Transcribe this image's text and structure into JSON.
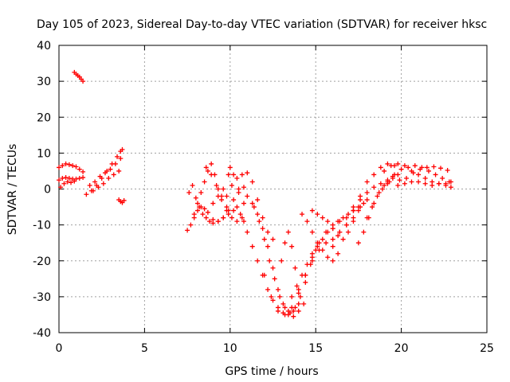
{
  "chart_data": {
    "type": "scatter",
    "title": "Day 105 of 2023, Sidereal Day-to-day VTEC variation (SDTVAR) for receiver hksc",
    "xlabel": "GPS time / hours",
    "ylabel": "SDTVAR / TECUs",
    "xlim": [
      0,
      25
    ],
    "ylim": [
      -40,
      40
    ],
    "xticks": [
      0,
      5,
      10,
      15,
      20,
      25
    ],
    "yticks": [
      -40,
      -30,
      -20,
      -10,
      0,
      10,
      20,
      30,
      40
    ],
    "grid": true,
    "marker": "plus",
    "color": "#ff0000",
    "series": [
      {
        "x": [
          0.0,
          0.2,
          0.4,
          0.6,
          0.8,
          1.0,
          1.2,
          1.4
        ],
        "y": [
          6.0,
          6.5,
          7.0,
          6.8,
          6.5,
          6.2,
          5.5,
          4.8
        ]
      },
      {
        "x": [
          0.0,
          0.2,
          0.4,
          0.6,
          0.8,
          1.0,
          1.2,
          1.4
        ],
        "y": [
          2.5,
          3.0,
          3.2,
          3.0,
          2.8,
          2.8,
          3.0,
          3.2
        ]
      },
      {
        "x": [
          0.1,
          0.3,
          0.5,
          0.7,
          0.9
        ],
        "y": [
          0.5,
          1.5,
          2.0,
          1.8,
          2.2
        ]
      },
      {
        "x": [
          0.9,
          1.0,
          1.1,
          1.2,
          1.3,
          1.4
        ],
        "y": [
          32.5,
          32.0,
          31.6,
          31.2,
          30.6,
          30.0
        ]
      },
      {
        "x": [
          1.6,
          1.9,
          2.2,
          2.5,
          2.8,
          3.1,
          3.4,
          3.6,
          3.7
        ],
        "y": [
          -1.5,
          -0.5,
          1.0,
          3.0,
          5.0,
          7.0,
          9.0,
          10.5,
          11.0
        ]
      },
      {
        "x": [
          1.8,
          2.1,
          2.4,
          2.7,
          3.0,
          3.3,
          3.6
        ],
        "y": [
          1.0,
          2.0,
          3.5,
          4.5,
          5.5,
          7.0,
          8.5
        ]
      },
      {
        "x": [
          2.0,
          2.3,
          2.6,
          2.9,
          3.2,
          3.5
        ],
        "y": [
          -0.5,
          0.5,
          1.5,
          3.0,
          4.0,
          5.0
        ]
      },
      {
        "x": [
          3.5,
          3.6,
          3.7,
          3.8
        ],
        "y": [
          -3.0,
          -3.5,
          -3.8,
          -3.2
        ]
      },
      {
        "x": [
          7.5,
          7.7,
          7.9,
          8.1,
          8.3,
          8.5,
          8.7,
          9.0,
          9.3,
          9.6,
          9.9,
          10.2
        ],
        "y": [
          -11.5,
          -10.0,
          -8.0,
          -6.0,
          -5.0,
          -5.5,
          -6.5,
          -8.5,
          -9.0,
          -8.0,
          -7.0,
          -6.0
        ]
      },
      {
        "x": [
          7.6,
          7.8,
          8.0,
          8.2,
          8.4,
          8.6,
          8.8,
          9.0,
          9.3,
          9.6,
          9.9,
          10.2,
          10.5,
          10.8
        ],
        "y": [
          -1.0,
          1.0,
          -2.5,
          -5.0,
          -7.0,
          -8.0,
          -9.0,
          -9.5,
          -9.0,
          -8.0,
          -6.0,
          -3.0,
          -1.0,
          0.5
        ]
      },
      {
        "x": [
          7.9,
          8.1,
          8.3,
          8.5,
          8.7,
          8.9,
          9.1,
          9.3,
          9.5,
          9.8
        ],
        "y": [
          -7.0,
          -4.0,
          -1.0,
          2.0,
          5.0,
          7.0,
          4.0,
          0.0,
          -3.0,
          -6.0
        ]
      },
      {
        "x": [
          8.6,
          8.9,
          9.2,
          9.5,
          9.8,
          10.1,
          10.4,
          10.7
        ],
        "y": [
          6.0,
          4.0,
          1.0,
          -2.0,
          -5.0,
          -8.0,
          -9.0,
          -8.0
        ]
      },
      {
        "x": [
          9.0,
          9.3,
          9.6,
          9.9,
          10.0,
          10.2,
          10.5,
          10.8
        ],
        "y": [
          -4.0,
          -2.0,
          0.0,
          4.0,
          6.0,
          4.0,
          0.0,
          -4.0
        ]
      },
      {
        "x": [
          9.8,
          10.1,
          10.4,
          10.7,
          11.0,
          11.3,
          11.6,
          11.9,
          12.2,
          12.5
        ],
        "y": [
          -2.0,
          1.0,
          3.0,
          4.0,
          4.5,
          2.0,
          -3.0,
          -8.0,
          -12.0,
          -14.0
        ]
      },
      {
        "x": [
          10.4,
          10.6,
          10.8,
          11.0,
          11.3,
          11.6,
          11.9,
          12.2,
          12.5,
          12.8,
          13.1,
          13.4,
          13.7,
          14.0
        ],
        "y": [
          -5.0,
          -7.0,
          -9.0,
          -12.0,
          -16.0,
          -20.0,
          -24.0,
          -28.0,
          -31.0,
          -33.0,
          -34.5,
          -35.0,
          -34.0,
          -32.0
        ]
      },
      {
        "x": [
          11.0,
          11.3,
          11.6,
          11.9,
          12.2,
          12.5,
          12.8,
          13.1,
          13.4,
          13.7,
          14.0,
          14.3
        ],
        "y": [
          -2.0,
          -4.0,
          -7.0,
          -11.0,
          -16.0,
          -22.0,
          -28.0,
          -32.0,
          -34.0,
          -35.5,
          -34.0,
          -32.0
        ]
      },
      {
        "x": [
          11.4,
          11.7,
          12.0,
          12.3,
          12.6,
          12.9,
          13.2,
          13.5,
          13.8,
          14.1,
          14.4,
          14.7,
          15.0
        ],
        "y": [
          -5.0,
          -9.0,
          -14.0,
          -20.0,
          -25.0,
          -30.0,
          -33.0,
          -34.5,
          -33.0,
          -30.0,
          -26.0,
          -21.0,
          -17.0
        ]
      },
      {
        "x": [
          12.0,
          12.4,
          12.8,
          13.2,
          13.6,
          14.0,
          14.4,
          14.8,
          15.2,
          15.6,
          16.0,
          16.4
        ],
        "y": [
          -24.0,
          -30.0,
          -34.0,
          -35.0,
          -33.0,
          -29.0,
          -24.0,
          -19.0,
          -15.0,
          -12.0,
          -10.0,
          -9.0
        ]
      },
      {
        "x": [
          13.0,
          13.2,
          13.4,
          13.6,
          13.8
        ],
        "y": [
          -20.0,
          -15.0,
          -12.0,
          -16.0,
          -22.0
        ]
      },
      {
        "x": [
          13.6,
          13.9,
          14.2,
          14.5,
          14.8,
          15.1,
          15.4,
          15.7,
          16.0,
          16.3,
          16.6,
          16.9,
          17.2,
          17.5
        ],
        "y": [
          -30.0,
          -27.0,
          -24.0,
          -21.0,
          -18.0,
          -16.0,
          -14.0,
          -12.0,
          -11.0,
          -9.0,
          -8.0,
          -7.0,
          -6.0,
          -5.0
        ]
      },
      {
        "x": [
          14.0,
          14.4,
          14.8,
          15.2,
          15.6,
          16.0,
          16.4,
          16.8,
          17.2,
          17.6,
          18.0
        ],
        "y": [
          -28.0,
          -24.0,
          -20.0,
          -17.0,
          -15.0,
          -14.0,
          -12.0,
          -10.0,
          -8.0,
          -5.0,
          -3.0
        ]
      },
      {
        "x": [
          14.2,
          14.5,
          14.8,
          15.1,
          15.4,
          15.7,
          16.0,
          16.3
        ],
        "y": [
          -7.0,
          -9.0,
          -12.0,
          -15.0,
          -17.0,
          -19.0,
          -20.0,
          -18.0
        ]
      },
      {
        "x": [
          14.8,
          15.1,
          15.4,
          15.7,
          16.0,
          16.3,
          16.6,
          16.9,
          17.2,
          17.5,
          17.8
        ],
        "y": [
          -6.0,
          -7.0,
          -8.0,
          -9.0,
          -11.0,
          -13.0,
          -14.0,
          -12.0,
          -9.0,
          -6.0,
          -4.0
        ]
      },
      {
        "x": [
          16.0,
          16.4,
          16.8,
          17.2,
          17.6,
          18.0,
          18.4,
          18.8,
          19.2
        ],
        "y": [
          -16.0,
          -12.0,
          -8.0,
          -5.0,
          -3.0,
          -1.0,
          0.5,
          1.5,
          2.5
        ]
      },
      {
        "x": [
          16.8,
          17.2,
          17.6,
          18.0,
          18.4,
          18.8,
          19.2,
          19.6
        ],
        "y": [
          -10.0,
          -6.0,
          -2.0,
          2.0,
          4.0,
          6.0,
          7.0,
          6.5
        ]
      },
      {
        "x": [
          17.5,
          17.8,
          18.1,
          18.4,
          18.7,
          19.0,
          19.3
        ],
        "y": [
          -15.0,
          -12.0,
          -8.0,
          -4.0,
          -1.0,
          1.0,
          2.0
        ]
      },
      {
        "x": [
          18.0,
          18.3,
          18.6,
          18.9,
          19.2,
          19.5,
          19.8
        ],
        "y": [
          -8.0,
          -5.0,
          -2.0,
          0.0,
          1.5,
          3.0,
          4.0
        ]
      },
      {
        "x": [
          19.0,
          19.4,
          19.8,
          20.2,
          20.6,
          21.0,
          21.4,
          21.8,
          22.2,
          22.6,
          22.9
        ],
        "y": [
          5.0,
          6.5,
          7.0,
          6.5,
          5.0,
          4.0,
          3.0,
          2.0,
          1.5,
          1.5,
          2.0
        ]
      },
      {
        "x": [
          19.2,
          19.6,
          20.0,
          20.4,
          20.8,
          21.2,
          21.6,
          22.0,
          22.4,
          22.8
        ],
        "y": [
          2.0,
          4.0,
          5.5,
          6.0,
          6.5,
          6.0,
          5.0,
          4.0,
          3.0,
          2.0
        ]
      },
      {
        "x": [
          19.5,
          19.9,
          20.3,
          20.7,
          21.1,
          21.5,
          21.9,
          22.3,
          22.7
        ],
        "y": [
          3.5,
          2.5,
          3.0,
          4.5,
          5.5,
          6.0,
          6.2,
          5.8,
          5.2
        ]
      },
      {
        "x": [
          19.8,
          20.2,
          20.6,
          21.0,
          21.4,
          21.8,
          22.2,
          22.6,
          22.9
        ],
        "y": [
          1.0,
          1.5,
          2.0,
          2.0,
          1.5,
          1.0,
          1.5,
          1.0,
          0.5
        ]
      }
    ]
  }
}
